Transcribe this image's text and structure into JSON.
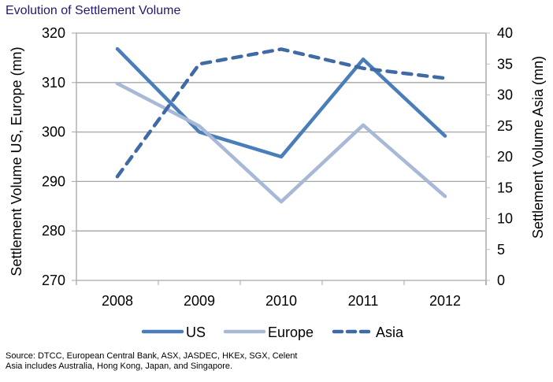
{
  "chart_data": {
    "type": "line",
    "title": "Evolution of Settlement Volume",
    "categories": [
      "2008",
      "2009",
      "2010",
      "2011",
      "2012"
    ],
    "xlabel": "",
    "ylabel": "Settlement Volume US, Europe (mn)",
    "y2label": "Settlement Volume Asia (mn)",
    "ylim": [
      270,
      320
    ],
    "yticks": [
      270,
      280,
      290,
      300,
      310,
      320
    ],
    "y2lim": [
      0,
      40
    ],
    "y2ticks": [
      0,
      5,
      10,
      15,
      20,
      25,
      30,
      35,
      40
    ],
    "grid": true,
    "legend_position": "bottom",
    "series": [
      {
        "name": "US",
        "axis": "left",
        "style": "solid",
        "color": "#4a7ebb",
        "values": [
          316.8,
          300.0,
          295.0,
          314.7,
          299.2
        ]
      },
      {
        "name": "Europe",
        "axis": "left",
        "style": "solid",
        "color": "#a7b9d7",
        "values": [
          309.8,
          301.2,
          285.9,
          301.4,
          287.0
        ]
      },
      {
        "name": "Asia",
        "axis": "right",
        "style": "dashed",
        "color": "#3f6aa5",
        "values": [
          16.8,
          35.0,
          37.4,
          34.3,
          32.7
        ]
      }
    ]
  },
  "footnotes": {
    "source": "Source:  DTCC, European Central Bank, ASX, JASDEC, HKEx, SGX, Celent",
    "note": "Asia includes Australia, Hong Kong, Japan, and Singapore."
  }
}
